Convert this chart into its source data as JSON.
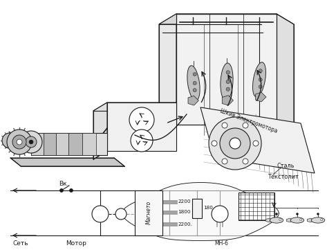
{
  "background_color": "#ffffff",
  "fig_width": 4.73,
  "fig_height": 3.61,
  "dpi": 100,
  "labels": {
    "vkl": "Вк.",
    "set": "Сеть",
    "motor_label": "Мотор",
    "magneto": "Магнето",
    "stal": "Сталь",
    "tekstolit": "Текстолит",
    "shkiv": "Шкив Электромотора",
    "mn6": "МН-6",
    "cap2200_top": "2200",
    "cap1800": "1800",
    "cap2200_bot": "2200.",
    "res180": "180"
  },
  "line_color": "#1a1a1a",
  "line_width": 0.8,
  "text_color": "#1a1a1a",
  "font_size": 6.5
}
